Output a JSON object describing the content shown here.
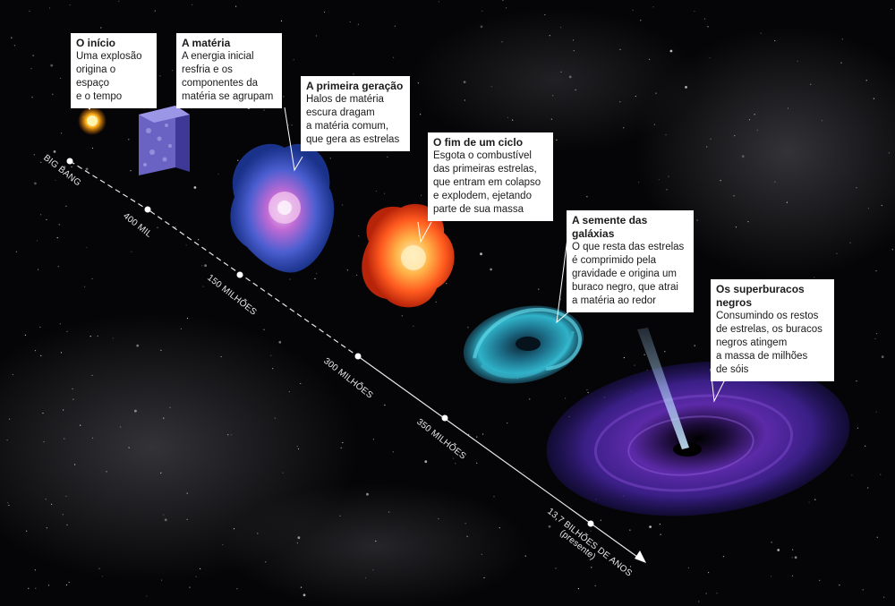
{
  "timeline": {
    "ticks": [
      {
        "id": "big-bang",
        "label": "BIG BANG"
      },
      {
        "id": "400mil",
        "label": "400 MIL"
      },
      {
        "id": "150milhoes",
        "label": "150 MILHÕES"
      },
      {
        "id": "300milhoes",
        "label": "300 MILHÕES"
      },
      {
        "id": "350milhoes",
        "label": "350 MILHÕES"
      },
      {
        "id": "presente",
        "label": "13,7 BILHÕES DE ANOS",
        "sublabel": "(presente)"
      }
    ]
  },
  "stages": [
    {
      "title": "O início",
      "text": "Uma explosão\norigina o espaço\ne o tempo"
    },
    {
      "title": "A matéria",
      "text": "A energia inicial\nresfria e os\ncomponentes da\nmatéria se agrupam"
    },
    {
      "title": "A primeira geração",
      "text": "Halos de matéria\nescura dragam\na matéria comum,\nque gera as estrelas"
    },
    {
      "title": "O fim de um ciclo",
      "text": "Esgota o combustível\ndas primeiras estrelas,\nque entram em colapso\ne explodem, ejetando\nparte de sua massa"
    },
    {
      "title": "A semente das galáxias",
      "text": "O que resta das estrelas\né comprimido pela\ngravidade e origina um\nburaco negro, que atrai\na matéria ao redor"
    },
    {
      "title": "Os superburacos negros",
      "text": "Consumindo os restos\nde estrelas, os buracos\nnegros atingem\na massa de milhões\nde sóis"
    }
  ],
  "colors": {
    "background": "#050507",
    "star": "#ffb21a",
    "cube": "#6b63c4",
    "halo": "#3d5bd0",
    "halo_core": "#d07ad8",
    "explosion": "#ff5a1f",
    "explosion_core": "#ffd27a",
    "galaxy": "#2a9cb8",
    "black_hole_disk": "#5a2aa8",
    "jet": "#8fc8ff"
  }
}
